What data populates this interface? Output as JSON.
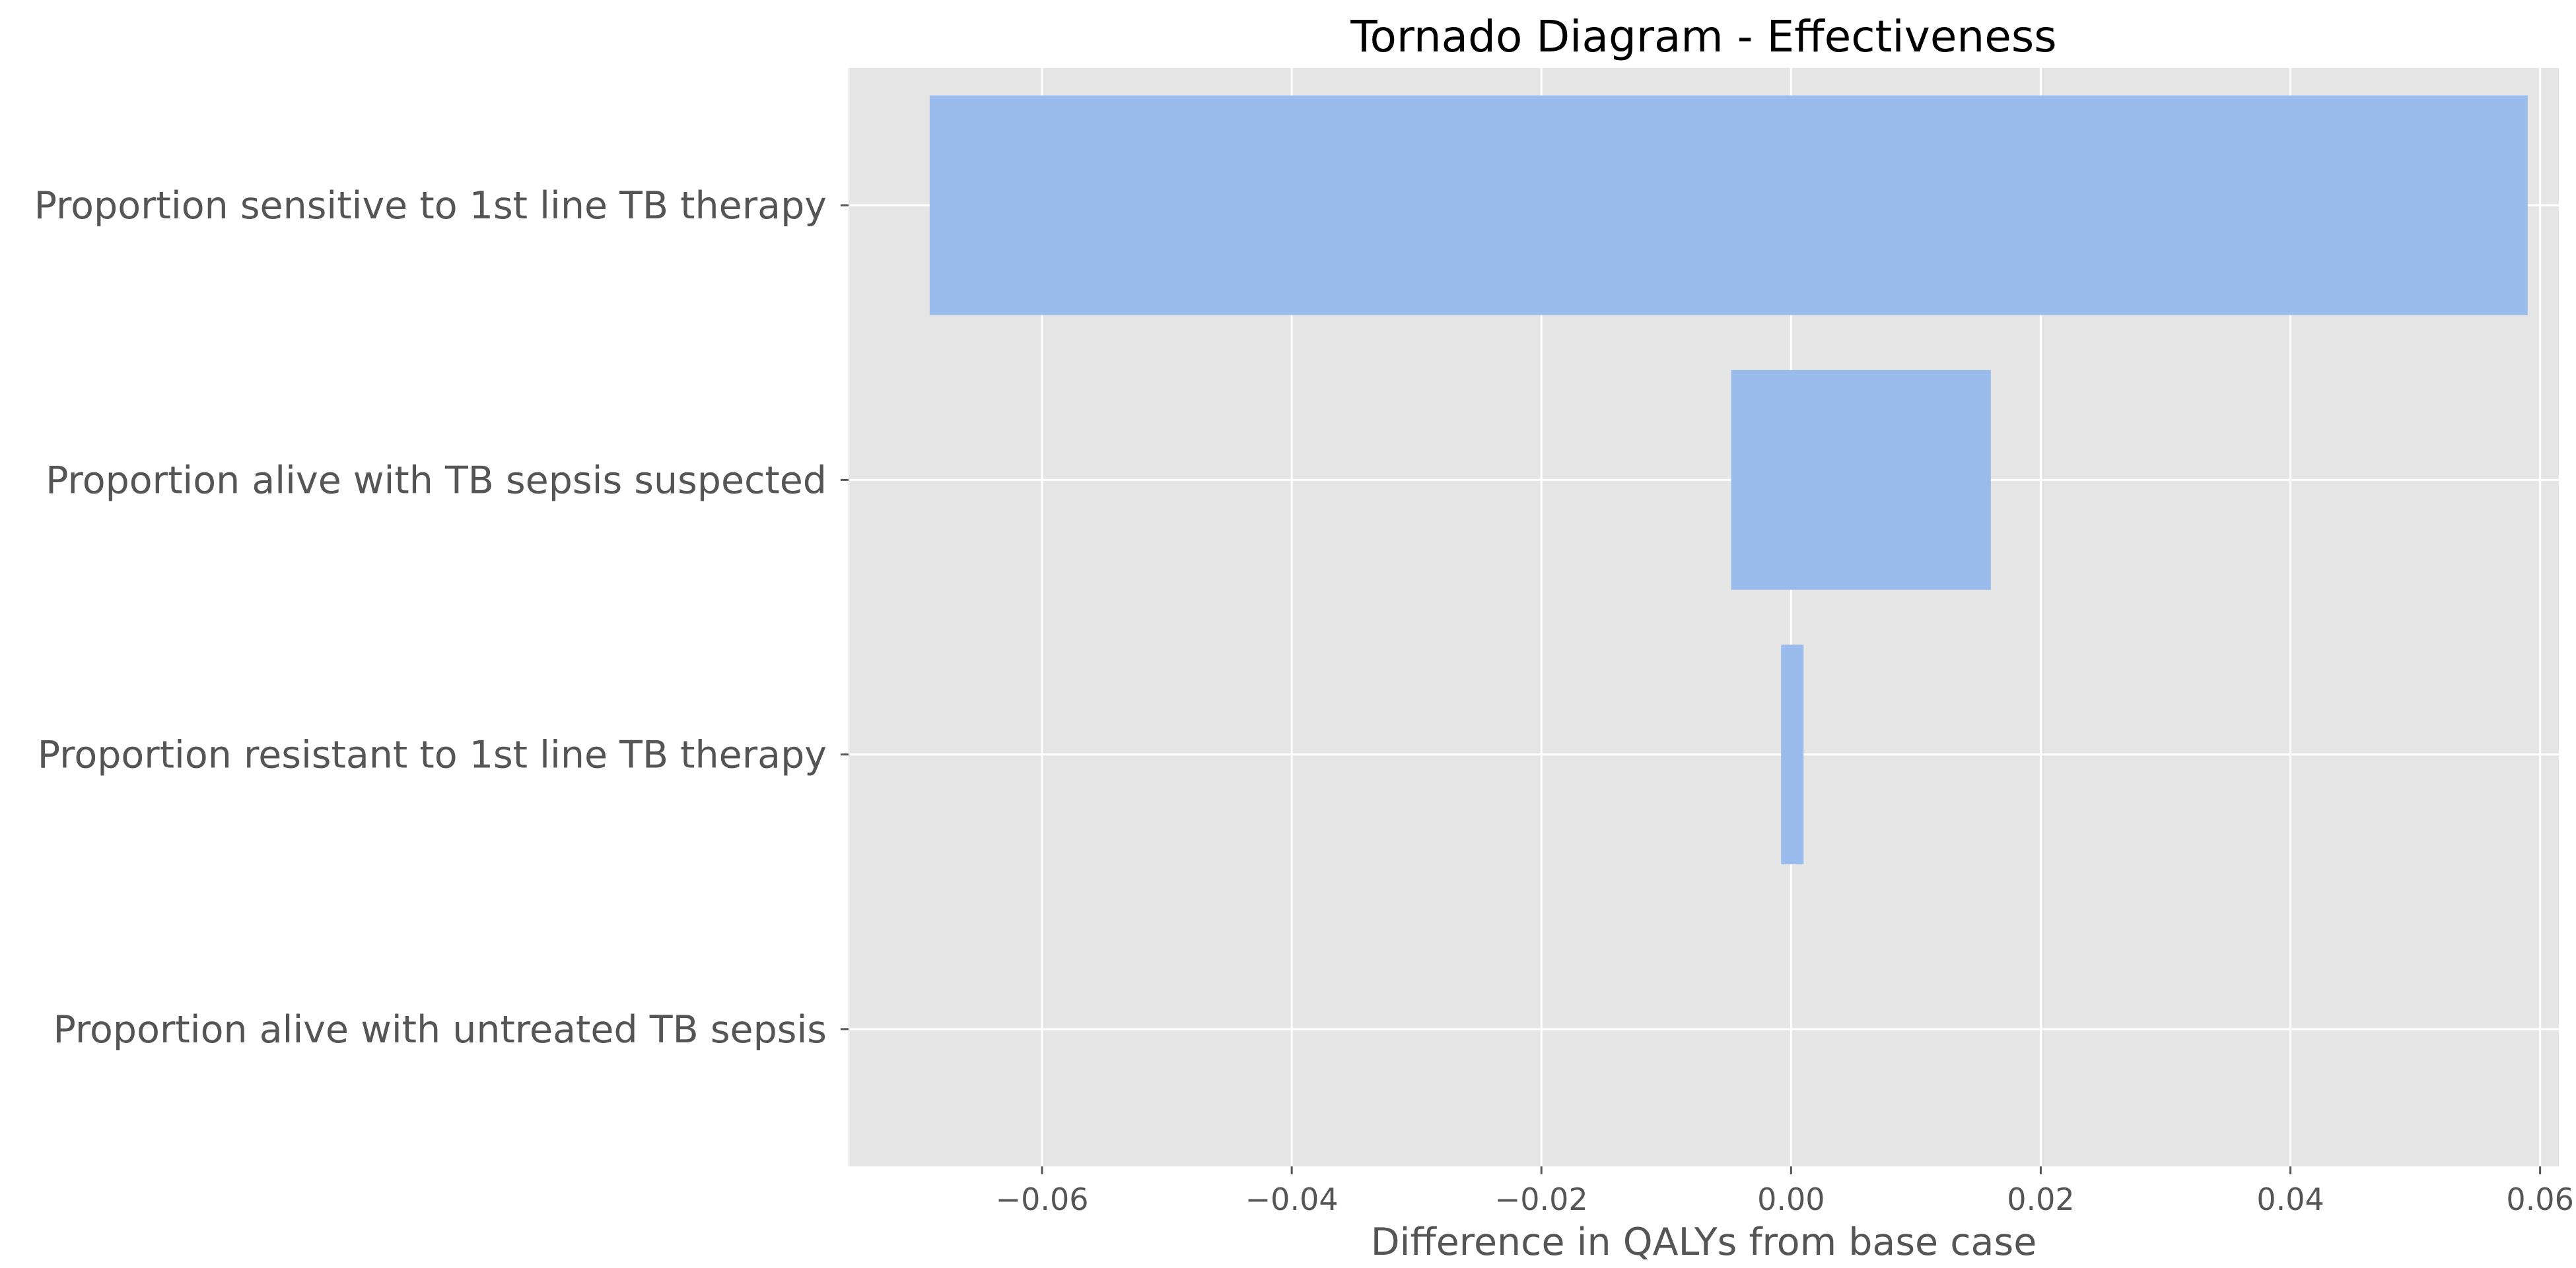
{
  "chart_data": {
    "type": "bar",
    "orientation": "horizontal",
    "title": "Tornado Diagram - Effectiveness",
    "xlabel": "Difference in QALYs from base case",
    "ylabel": "",
    "xlim": [
      -0.0755,
      0.0615
    ],
    "x_ticks": [
      -0.06,
      -0.04,
      -0.02,
      0.0,
      0.02,
      0.04,
      0.06
    ],
    "x_tick_labels": [
      "−0.06",
      "−0.04",
      "−0.02",
      "0.00",
      "0.02",
      "0.04",
      "0.06"
    ],
    "grid": true,
    "bar_color": "#99bcec",
    "background_color": "#e5e5e5",
    "grid_color": "#ffffff",
    "categories": [
      "Proportion sensitive to 1st line TB therapy",
      "Proportion alive with TB sepsis suspected",
      "Proportion resistant to 1st line TB therapy",
      "Proportion alive with untreated TB sepsis"
    ],
    "ranges": [
      {
        "low": -0.069,
        "high": 0.059
      },
      {
        "low": -0.0048,
        "high": 0.016
      },
      {
        "low": -0.0008,
        "high": 0.001
      },
      {
        "low": 0.0,
        "high": 0.0
      }
    ]
  }
}
